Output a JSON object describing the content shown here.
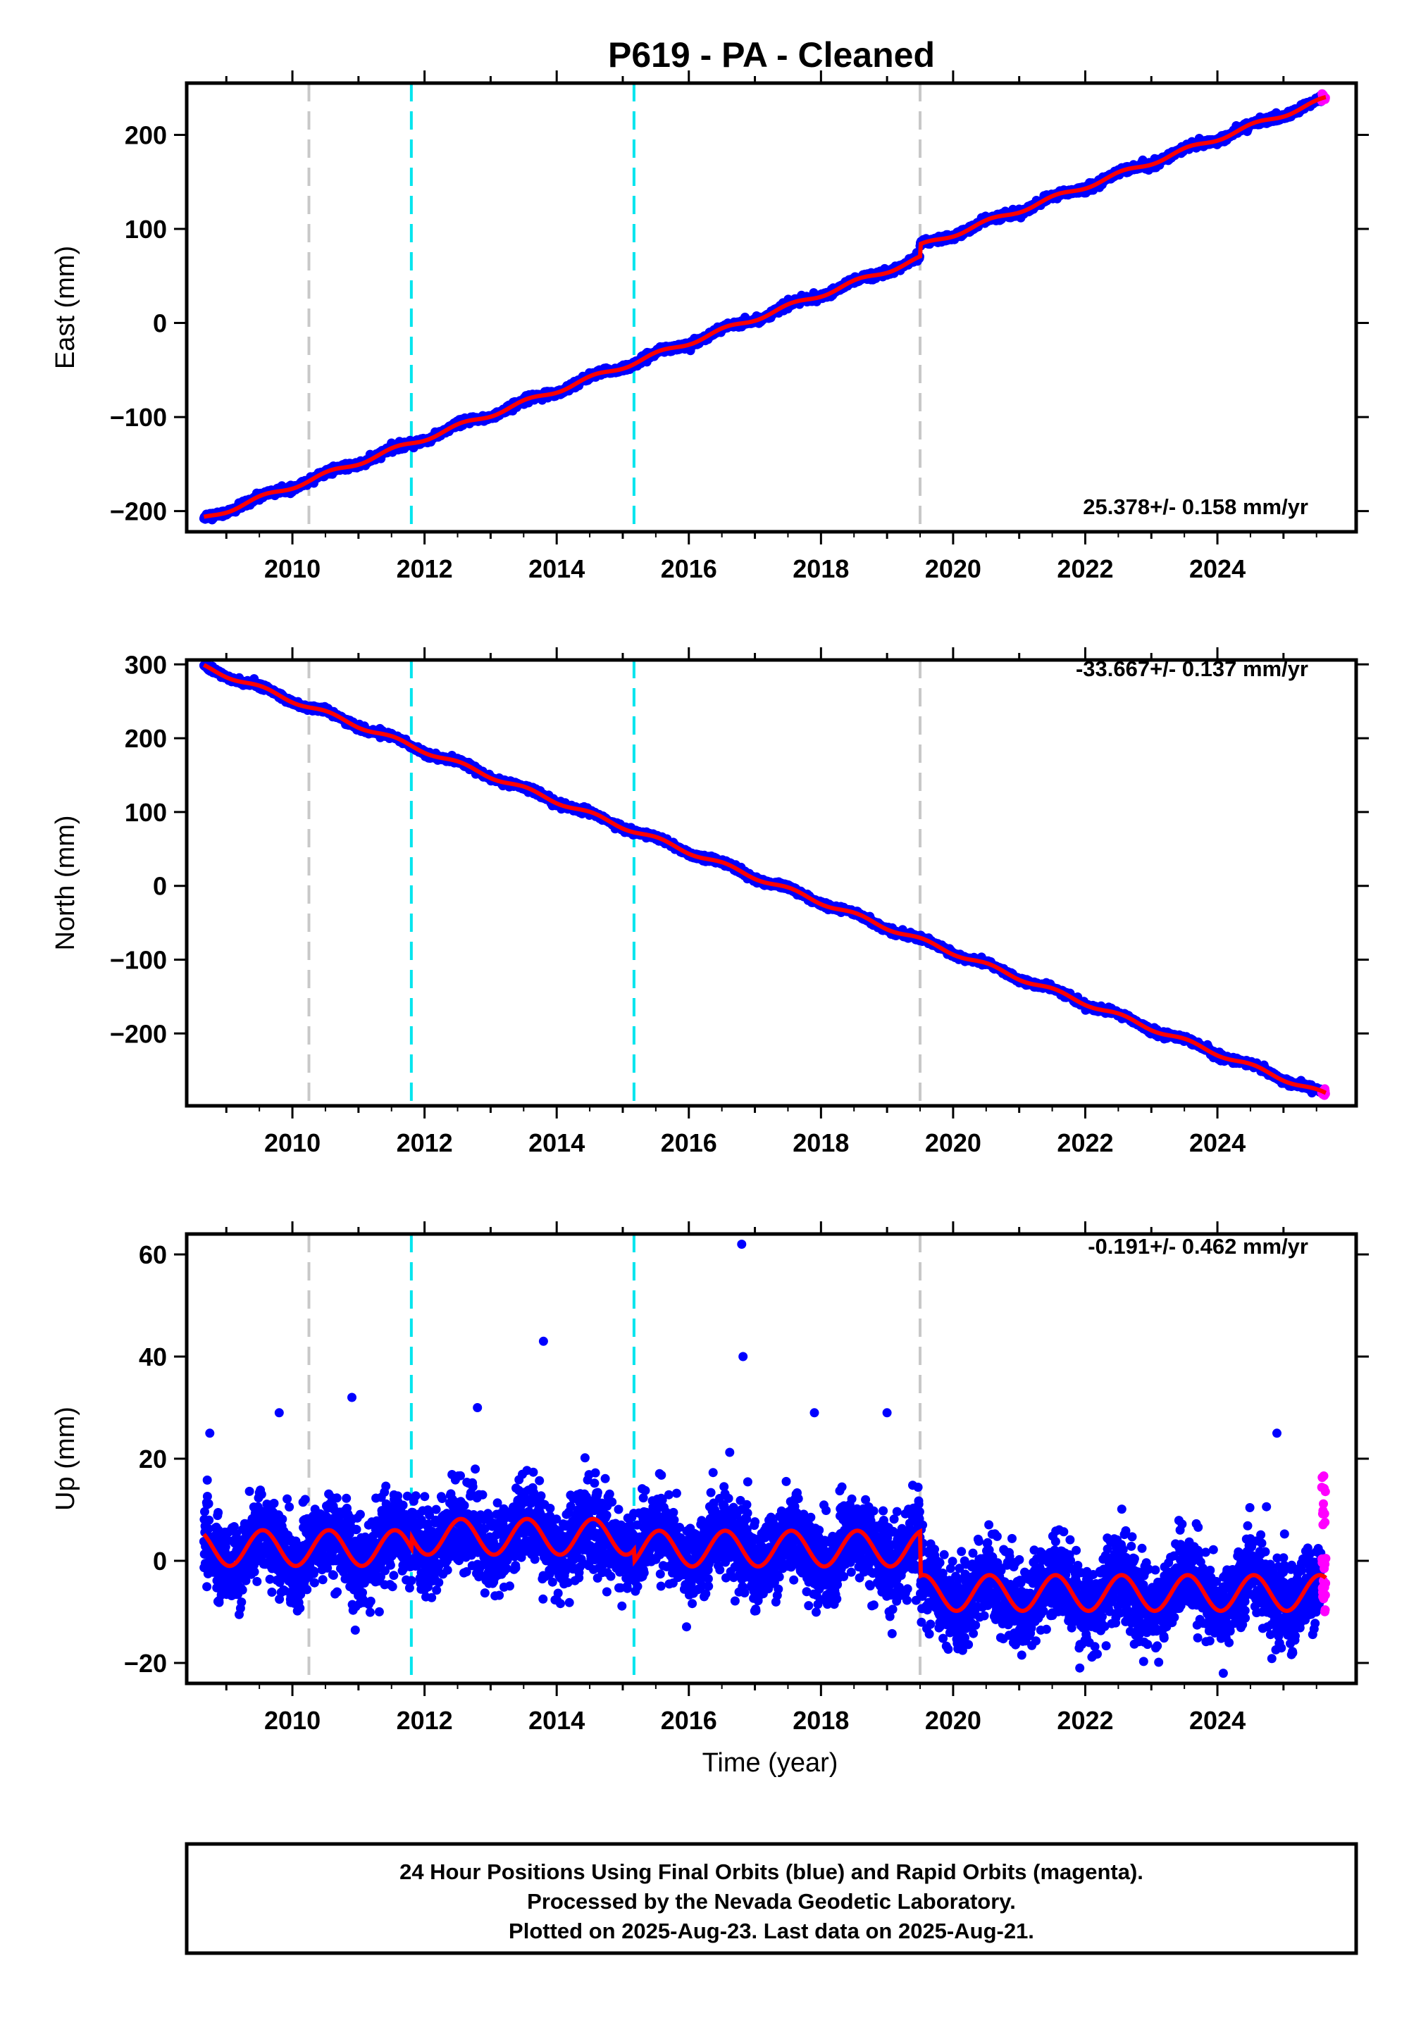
{
  "chart_data": {
    "type": "scatter",
    "title": "P619  - PA - Cleaned",
    "xlabel": "Time (year)",
    "xlim": [
      2008.4,
      2026.1
    ],
    "x_ticks": [
      2010,
      2012,
      2014,
      2016,
      2018,
      2020,
      2022,
      2024
    ],
    "x_tick_labels": [
      "2010",
      "2012",
      "2014",
      "2016",
      "2018",
      "2020",
      "2022",
      "2024"
    ],
    "data_span": [
      2008.66,
      2025.64
    ],
    "final_orbit_color": "#0000ff",
    "rapid_orbit_color": "#ff00ff",
    "model_color": "#ff0000",
    "equipment_change_color": "#c8c8c8",
    "earthquake_color": "#00e5ee",
    "equipment_change_lines": [
      2010.25,
      2019.5
    ],
    "earthquake_lines": [
      2011.8,
      2015.17
    ],
    "panels": [
      {
        "component": "east",
        "ylabel": "East (mm)",
        "ylim": [
          -222,
          255
        ],
        "y_ticks": [
          -200,
          -100,
          0,
          100,
          200
        ],
        "y_tick_labels": [
          "−200",
          "−100",
          "0",
          "100",
          "200"
        ],
        "velocity_label": "25.378+/- 0.158 mm/yr",
        "velocity_mm_yr": 25.378,
        "velocity_sigma": 0.158,
        "start_value": -208,
        "end_value": 238,
        "offsets": [
          {
            "year": 2019.5,
            "mm": 13
          }
        ],
        "annual_amplitude_mm": 2.5,
        "scatter_mm": 1.8
      },
      {
        "component": "north",
        "ylabel": "North (mm)",
        "ylim": [
          -298,
          306
        ],
        "y_ticks": [
          -200,
          -100,
          0,
          100,
          200,
          300
        ],
        "y_tick_labels": [
          "−200",
          "−100",
          "0",
          "100",
          "200",
          "300"
        ],
        "velocity_label": "-33.667+/- 0.137 mm/yr",
        "velocity_mm_yr": -33.667,
        "velocity_sigma": 0.137,
        "start_value": 297,
        "end_value": -283,
        "offsets": [],
        "annual_amplitude_mm": 3,
        "scatter_mm": 2
      },
      {
        "component": "up",
        "ylabel": "Up (mm)",
        "ylim": [
          -24,
          64
        ],
        "y_ticks": [
          -20,
          0,
          20,
          40,
          60
        ],
        "y_tick_labels": [
          "−20",
          "0",
          "20",
          "40",
          "60"
        ],
        "velocity_label": "-0.191+/- 0.462 mm/yr",
        "velocity_mm_yr": -0.191,
        "velocity_sigma": 0.462,
        "model_segments": [
          {
            "from": 2008.66,
            "to": 2011.8,
            "mean_mm": 2.5
          },
          {
            "from": 2011.8,
            "to": 2015.17,
            "mean_mm": 4.7
          },
          {
            "from": 2015.17,
            "to": 2019.5,
            "mean_mm": 2.4
          },
          {
            "from": 2019.5,
            "to": 2025.64,
            "mean_mm": -6.3
          }
        ],
        "annual_amplitude_mm": 3.5,
        "scatter_mm": 4,
        "outliers": [
          [
            2016.8,
            62
          ],
          [
            2016.82,
            40
          ],
          [
            2013.8,
            43
          ],
          [
            2012.8,
            30
          ],
          [
            2010.9,
            32
          ],
          [
            2009.8,
            29
          ],
          [
            2024.9,
            25
          ],
          [
            2008.75,
            25
          ],
          [
            2019.0,
            29
          ],
          [
            2017.9,
            29
          ]
        ]
      }
    ]
  },
  "footer": {
    "line1": "24 Hour Positions Using Final Orbits (blue) and Rapid Orbits (magenta).",
    "line2": "Processed by the Nevada Geodetic Laboratory.",
    "line3": "Plotted on 2025-Aug-23. Last data on 2025-Aug-21."
  }
}
